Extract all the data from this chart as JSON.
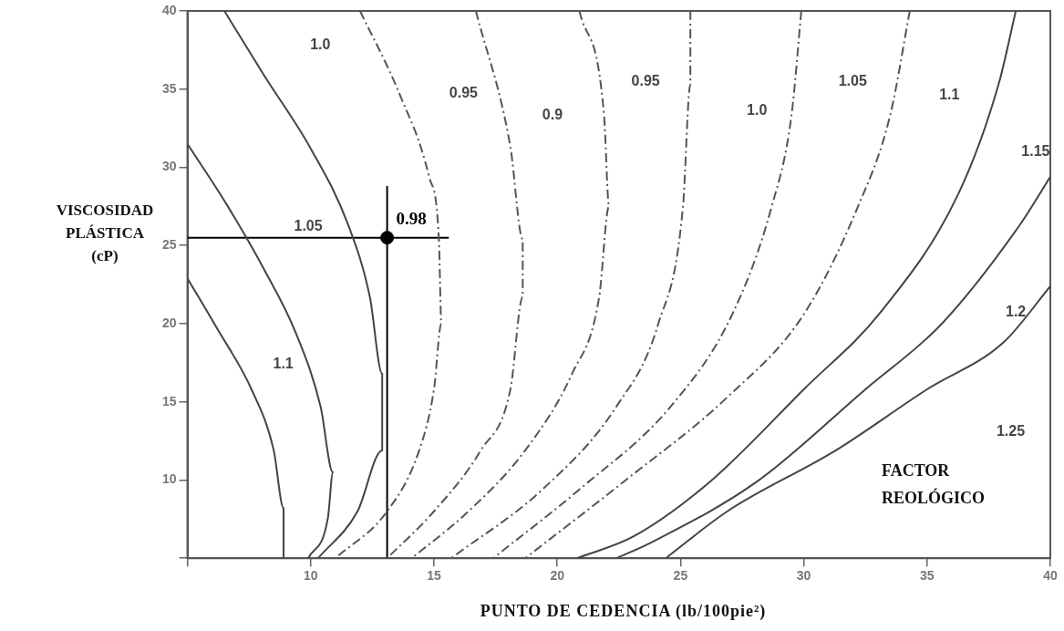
{
  "chart_data": {
    "type": "line",
    "xlabel": "PUNTO DE CEDENCIA (lb/100pie²)",
    "ylabel": "VISCOSIDAD PLÁSTICA (cP)",
    "xlim": [
      5,
      40
    ],
    "ylim": [
      5,
      40
    ],
    "xticks": [
      {
        "value": 5,
        "label": null
      },
      10,
      15,
      20,
      25,
      30,
      35,
      40
    ],
    "yticks": [
      {
        "value": 5,
        "label": null
      },
      10,
      15,
      20,
      25,
      30,
      35,
      40
    ],
    "grid": false,
    "legend": false,
    "series": [
      {
        "color": "#444444",
        "line_style": "solid",
        "x": [
          5,
          6.2,
          7.6,
          8.5,
          8.9,
          8.9
        ],
        "values": [
          22.9,
          19.7,
          15.8,
          11.9,
          8.2,
          5
        ]
      },
      {
        "color": "#444444",
        "line_style": "solid",
        "x": [
          5,
          6.6,
          8.1,
          9.4,
          10.4,
          10.9,
          10.7,
          9.9
        ],
        "values": [
          31.5,
          27.6,
          23.5,
          19.4,
          14.7,
          10.5,
          7.6,
          5
        ]
      },
      {
        "color": "#444444",
        "line_style": "solid",
        "x": [
          6.5,
          8.1,
          10.0,
          11.5,
          12.4,
          12.9,
          12.9,
          11.9,
          10.3
        ],
        "values": [
          40,
          35.9,
          31.2,
          26.4,
          21.7,
          16.8,
          11.9,
          8.0,
          5
        ]
      },
      {
        "color": "#555555",
        "line_style": "dashed",
        "x": [
          12.0,
          13.6,
          14.8,
          15.2,
          15.3,
          15.0,
          14.4,
          13.1,
          11.0
        ],
        "values": [
          40,
          34.7,
          29.4,
          25.4,
          20.0,
          15.8,
          11.9,
          8.0,
          5
        ]
      },
      {
        "color": "#555555",
        "line_style": "dashed",
        "x": [
          16.7,
          18.1,
          18.6,
          18.6,
          18.1,
          16.9,
          15.0,
          13.1
        ],
        "values": [
          40,
          31.3,
          25.4,
          21.7,
          15.8,
          11.9,
          8.0,
          5
        ]
      },
      {
        "color": "#555555",
        "line_style": "dashed",
        "x": [
          20.9,
          21.9,
          22.1,
          21.7,
          20.6,
          18.7,
          16.4,
          14.1
        ],
        "values": [
          40,
          33.3,
          27.5,
          21.7,
          16.8,
          11.9,
          8.0,
          5
        ]
      },
      {
        "color": "#555555",
        "line_style": "dashed",
        "x": [
          25.4,
          25.4,
          25.1,
          24.1,
          22.4,
          19.4,
          15.7
        ],
        "values": [
          40,
          35.3,
          27.5,
          20.0,
          14.7,
          9.4,
          5
        ]
      },
      {
        "color": "#555555",
        "line_style": "dashed",
        "x": [
          29.9,
          29.5,
          28.7,
          27.1,
          24.6,
          20.9,
          17.4
        ],
        "values": [
          40,
          33.3,
          27.5,
          20.6,
          14.7,
          9.4,
          5
        ]
      },
      {
        "color": "#555555",
        "line_style": "dashed",
        "x": [
          34.3,
          33.5,
          32.2,
          30.0,
          26.9,
          22.7,
          18.7
        ],
        "values": [
          40,
          33.3,
          27.5,
          20.6,
          15.3,
          9.9,
          5
        ]
      },
      {
        "color": "#444444",
        "line_style": "solid",
        "x": [
          38.6,
          37.9,
          36.3,
          33.1,
          30.0,
          26.2,
          23.1,
          20.8
        ],
        "values": [
          40,
          35.3,
          28.4,
          20.7,
          15.8,
          9.9,
          6.4,
          5
        ]
      },
      {
        "color": "#444444",
        "line_style": "solid",
        "x": [
          40,
          38.8,
          35.6,
          32.5,
          28.1,
          23.8,
          22.4
        ],
        "values": [
          29.4,
          26.4,
          20.0,
          15.8,
          9.9,
          6.0,
          5
        ]
      },
      {
        "color": "#444444",
        "line_style": "solid",
        "x": [
          40,
          38.1,
          35.0,
          31.3,
          26.9,
          24.4
        ],
        "values": [
          22.4,
          18.8,
          15.8,
          11.9,
          8.0,
          5
        ]
      },
      {
        "color": "#000000",
        "line_style": "solid",
        "x": [
          5,
          15.6
        ],
        "values": [
          25.5,
          25.5
        ]
      },
      {
        "color": "#000000",
        "line_style": "solid",
        "x": [
          13.1,
          13.1
        ],
        "values": [
          28.8,
          5
        ]
      },
      {
        "type": "scatter",
        "color": "#000000",
        "marker": "circle",
        "x": [
          13.1
        ],
        "values": [
          25.5
        ]
      }
    ],
    "annotations": [
      "1.0",
      "0.95",
      "0.9",
      "0.95",
      "1.0",
      "1.05",
      "1.1",
      "1.15",
      "1.2",
      "1.25",
      "1.05",
      "1.1",
      {
        "text": "0.98",
        "x": 13.1,
        "y": 25.5
      },
      "FACTOR REOLÓGICO"
    ]
  }
}
